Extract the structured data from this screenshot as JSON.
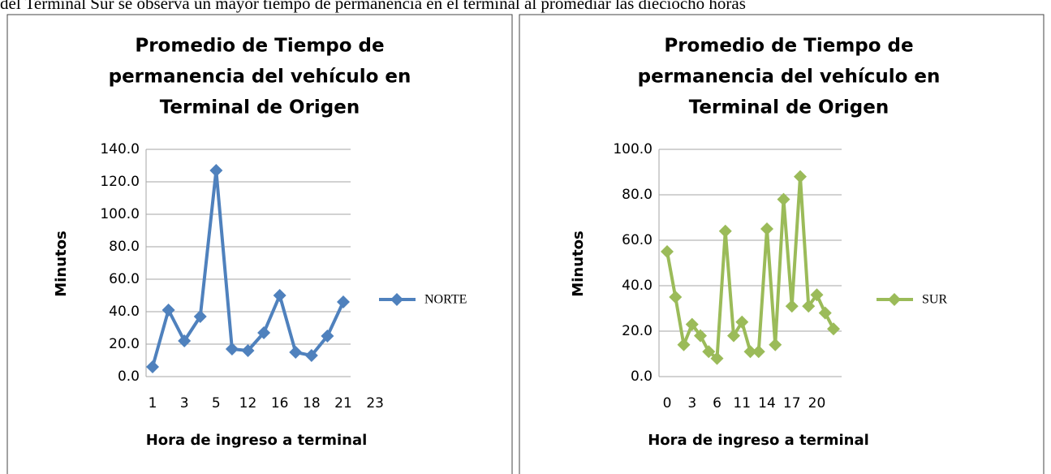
{
  "header": {
    "text": "del Terminal Sur se observa un mayor tiempo de permanencia en el terminal al promediar las dieciocho horas"
  },
  "chart_data": [
    {
      "type": "line",
      "title": [
        "Promedio de Tiempo de",
        "permanencia del vehículo en",
        "Terminal de Origen"
      ],
      "x_label": "Hora de ingreso a terminal",
      "y_label": "Minutos",
      "categories": [
        "1",
        null,
        "3",
        null,
        "5",
        null,
        "12",
        null,
        "16",
        null,
        "18",
        null,
        "21",
        null,
        "23"
      ],
      "series": [
        {
          "name": "NORTE",
          "color": "#4f81bd",
          "values": [
            6,
            41,
            22,
            37,
            127,
            17,
            16,
            27,
            50,
            15,
            13,
            25,
            46,
            null,
            null
          ]
        }
      ],
      "ylim": [
        0,
        140
      ],
      "yticks": [
        {
          "value": 0,
          "label": "0.0"
        },
        {
          "value": 20,
          "label": "20.0"
        },
        {
          "value": 40,
          "label": "40.0"
        },
        {
          "value": 60,
          "label": "60.0"
        },
        {
          "value": 80,
          "label": "80.0"
        },
        {
          "value": 100,
          "label": "100.0"
        },
        {
          "value": 120,
          "label": "120.0"
        },
        {
          "value": 140,
          "label": "140.0"
        }
      ],
      "grid": true,
      "legend": "right"
    },
    {
      "type": "line",
      "title": [
        "Promedio de Tiempo de",
        "permanencia del vehículo en",
        "Terminal de Origen"
      ],
      "x_label": "Hora de ingreso a terminal",
      "y_label": "Minutos",
      "categories": [
        "0",
        null,
        null,
        "3",
        null,
        null,
        "6",
        null,
        null,
        "11",
        null,
        null,
        "14",
        null,
        null,
        "17",
        null,
        null,
        "20",
        null,
        null
      ],
      "series": [
        {
          "name": "SUR",
          "color": "#9bbb59",
          "values": [
            55,
            35,
            14,
            23,
            18,
            11,
            8,
            64,
            18,
            24,
            11,
            11,
            65,
            14,
            78,
            31,
            88,
            31,
            36,
            28,
            21
          ]
        }
      ],
      "ylim": [
        0,
        100
      ],
      "yticks": [
        {
          "value": 0,
          "label": "0.0"
        },
        {
          "value": 20,
          "label": "20.0"
        },
        {
          "value": 40,
          "label": "40.0"
        },
        {
          "value": 60,
          "label": "60.0"
        },
        {
          "value": 80,
          "label": "80.0"
        },
        {
          "value": 100,
          "label": "100.0"
        }
      ],
      "grid": true,
      "legend": "right"
    }
  ]
}
